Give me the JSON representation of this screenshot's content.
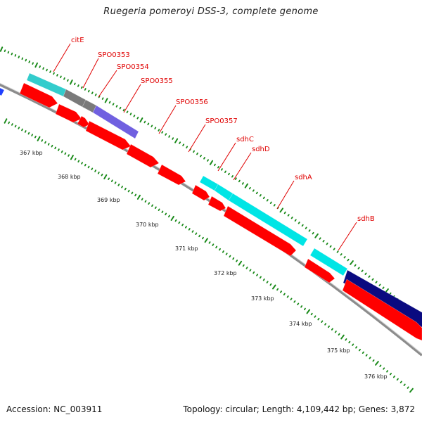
{
  "title": "Ruegeria pomeroyi DSS-3, complete genome",
  "footer": {
    "accession": "Accession: NC_003911",
    "summary": "Topology: circular; Length: 4,109,442 bp; Genes: 3,872"
  },
  "colors": {
    "backbone": "#8c8c8c",
    "cds": "#ff0000",
    "feature_cyan": "#00e5e5",
    "feature_teal": "#33cccc",
    "feature_gray": "#7a7a7a",
    "feature_purple": "#7060e0",
    "feature_navy": "#0a0a80",
    "feature_blue": "#2040ff",
    "ticks": "#1a8a1a",
    "label": "#e00000"
  },
  "gene_labels": [
    "citE",
    "SPO0353",
    "SPO0354",
    "SPO0355",
    "SPO0356",
    "SPO0357",
    "sdhC",
    "sdhD",
    "sdhA",
    "sdhB"
  ],
  "tick_labels": [
    "367 kbp",
    "368 kbp",
    "369 kbp",
    "370 kbp",
    "371 kbp",
    "372 kbp",
    "373 kbp",
    "374 kbp",
    "375 kbp",
    "376 kbp"
  ]
}
